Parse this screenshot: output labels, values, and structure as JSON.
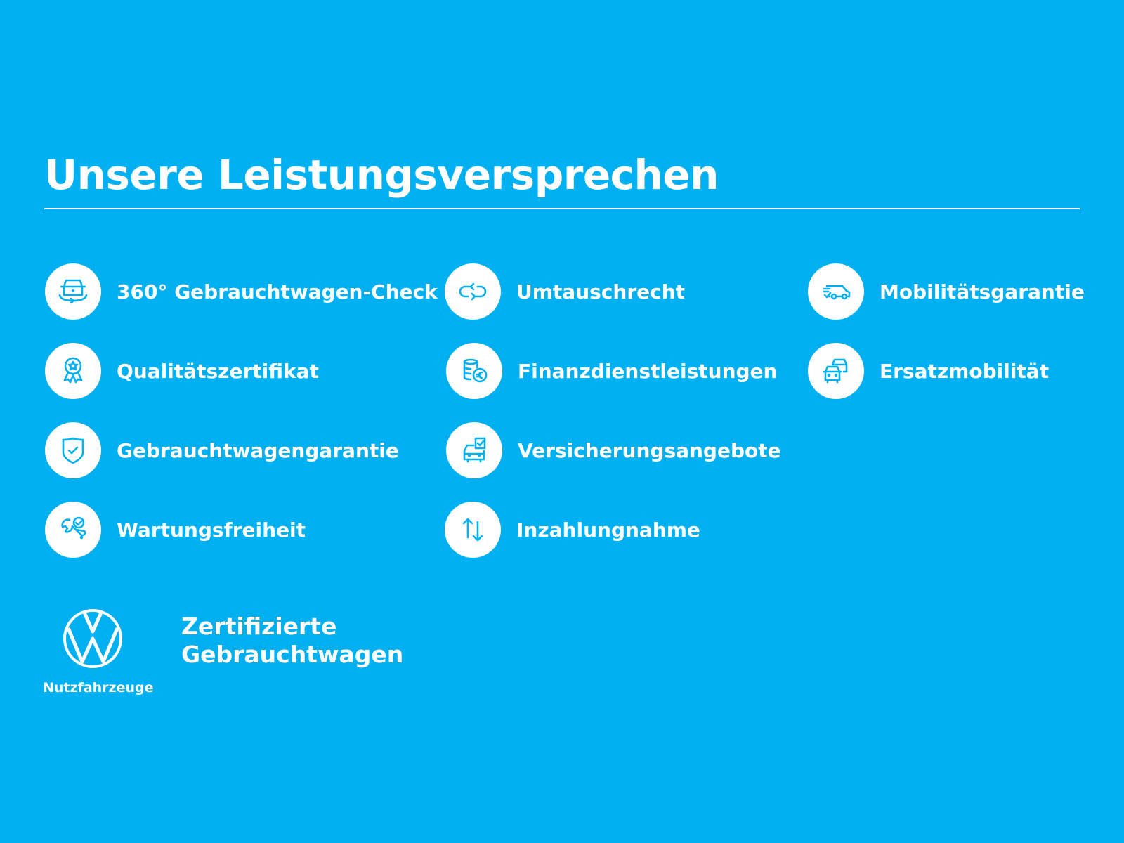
{
  "title": "Unsere Leistungsversprechen",
  "colors": {
    "background": "#00b0f0",
    "foreground": "#ffffff"
  },
  "items": [
    {
      "label": "360° Gebrauchtwagen-Check",
      "icon": "car-360-icon"
    },
    {
      "label": "Qualitätszertifikat",
      "icon": "award-ribbon-icon"
    },
    {
      "label": "Gebrauchtwagengarantie",
      "icon": "shield-check-icon"
    },
    {
      "label": "Wartungsfreiheit",
      "icon": "wrench-check-icon"
    },
    {
      "label": "Umtauschrecht",
      "icon": "exchange-arrows-icon"
    },
    {
      "label": "Finanzdienstleistungen",
      "icon": "coins-euro-icon"
    },
    {
      "label": "Versicherungsangebote",
      "icon": "car-document-check-icon"
    },
    {
      "label": "Inzahlungnahme",
      "icon": "up-down-arrows-icon"
    },
    {
      "label": "Mobilitätsgarantie",
      "icon": "van-check-icon"
    },
    {
      "label": "Ersatzmobilität",
      "icon": "two-cars-icon"
    }
  ],
  "footer": {
    "brand": "Nutzfahrzeuge",
    "cert_line1": "Zertifizierte",
    "cert_line2": "Gebrauchtwagen"
  }
}
